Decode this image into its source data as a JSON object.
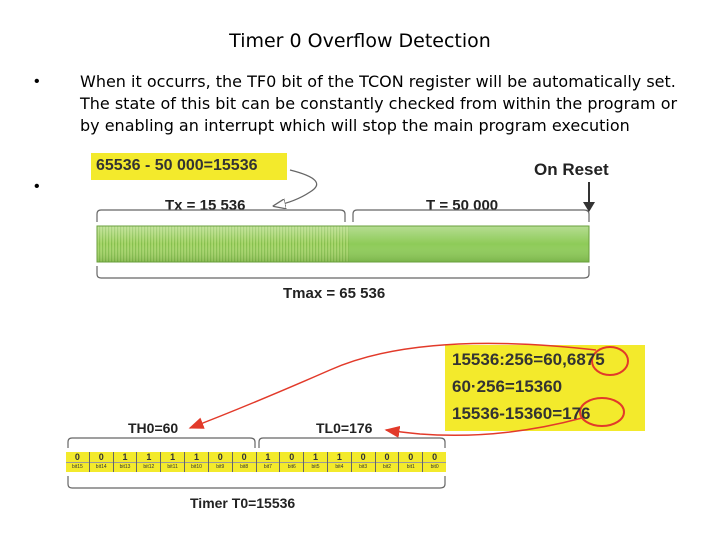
{
  "title": "Timer 0 Overflow Detection",
  "bullets": [
    "•",
    "•"
  ],
  "paragraph": "When it occurrs, the TF0 bit of the TCON register will be automatically set. The state of this bit can be constantly checked from within the program or by enabling an interrupt which will stop the main program execution",
  "diagram": {
    "top_formula": "65536 - 50 000=15536",
    "on_reset": "On Reset",
    "tx_label": "Tx = 15 536",
    "t_label": "T = 50 000",
    "tmax_label": "Tmax = 65 536",
    "calc_lines": [
      "15536:256=60,6875",
      "60·256=15360",
      "15536-15360=176"
    ],
    "th0_label": "TH0=60",
    "tl0_label": "TL0=176",
    "timer_label": "Timer T0=15536",
    "bits": [
      "0",
      "0",
      "1",
      "1",
      "1",
      "1",
      "0",
      "0",
      "1",
      "0",
      "1",
      "1",
      "0",
      "0",
      "0",
      "0"
    ],
    "bit_names": [
      "bit15",
      "bit14",
      "bit13",
      "bit12",
      "bit11",
      "bit10",
      "bit9",
      "bit8",
      "bit7",
      "bit6",
      "bit5",
      "bit4",
      "bit3",
      "bit2",
      "bit1",
      "bit0"
    ],
    "colors": {
      "highlight": "#f3ea2c",
      "bar_green": "#a8d66b",
      "bar_dark": "#7fb84a",
      "circle": "#e23a2a"
    }
  }
}
